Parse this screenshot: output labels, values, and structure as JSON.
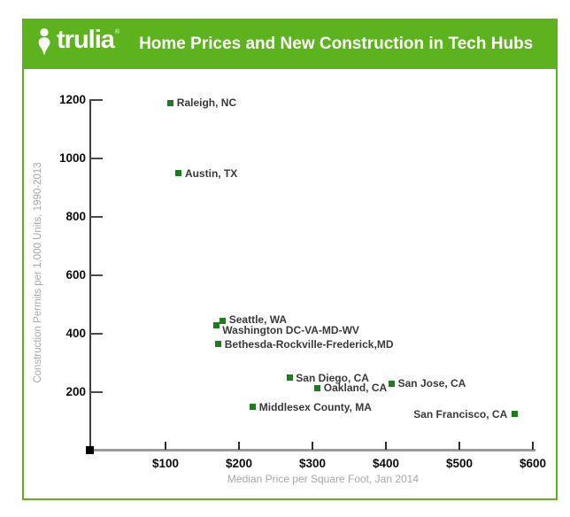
{
  "colors": {
    "brand_green": "#5cb31e",
    "marker_green": "#1d7d1e",
    "label_text": "#3a3a3a",
    "axis_caption_gray": "#a8a8a8"
  },
  "header": {
    "brand": "trulia",
    "registered_mark": "®",
    "title": "Home Prices and New Construction in Tech Hubs"
  },
  "chart_data": {
    "type": "scatter",
    "title": "Home Prices and New Construction in Tech Hubs",
    "xlabel": "Median Price per Square Foot, Jan 2014",
    "ylabel": "Construction Permits per 1,000 Units, 1990-2013",
    "xlim": [
      0,
      600
    ],
    "ylim": [
      0,
      1250
    ],
    "grid": false,
    "legend": "none",
    "marker": {
      "shape": "square",
      "color": "#1d7d1e",
      "size": 7
    },
    "x_ticks": [
      {
        "value": 100,
        "label": "$100"
      },
      {
        "value": 200,
        "label": "$200"
      },
      {
        "value": 300,
        "label": "$300"
      },
      {
        "value": 400,
        "label": "$400"
      },
      {
        "value": 500,
        "label": "$500"
      },
      {
        "value": 600,
        "label": "$600"
      }
    ],
    "y_ticks": [
      {
        "value": 200,
        "label": "200"
      },
      {
        "value": 400,
        "label": "400"
      },
      {
        "value": 600,
        "label": "600"
      },
      {
        "value": 800,
        "label": "800"
      },
      {
        "value": 1000,
        "label": "1000"
      },
      {
        "value": 1200,
        "label": "1200"
      }
    ],
    "points": [
      {
        "label": "Raleigh, NC",
        "price": 107,
        "permits": 1190,
        "label_side": "right"
      },
      {
        "label": "Austin, TX",
        "price": 118,
        "permits": 950,
        "label_side": "right"
      },
      {
        "label": "Seattle, WA",
        "price": 178,
        "permits": 445,
        "label_side": "right",
        "dy": -1
      },
      {
        "label": "Washington DC-VA-MD-WV",
        "price": 169,
        "permits": 430,
        "label_side": "right",
        "dy": 6
      },
      {
        "label": "Bethesda-Rockville-Frederick,MD",
        "price": 172,
        "permits": 365,
        "label_side": "right"
      },
      {
        "label": "San Diego, CA",
        "price": 269,
        "permits": 250,
        "label_side": "right"
      },
      {
        "label": "Oakland, CA",
        "price": 307,
        "permits": 215,
        "label_side": "right"
      },
      {
        "label": "San Jose, CA",
        "price": 408,
        "permits": 230,
        "label_side": "right"
      },
      {
        "label": "Middlesex County, MA",
        "price": 219,
        "permits": 150,
        "label_side": "right"
      },
      {
        "label": "San Francisco, CA",
        "price": 575,
        "permits": 125,
        "label_side": "left"
      }
    ],
    "origin_marker": {
      "shape": "square",
      "color": "#000000"
    }
  }
}
